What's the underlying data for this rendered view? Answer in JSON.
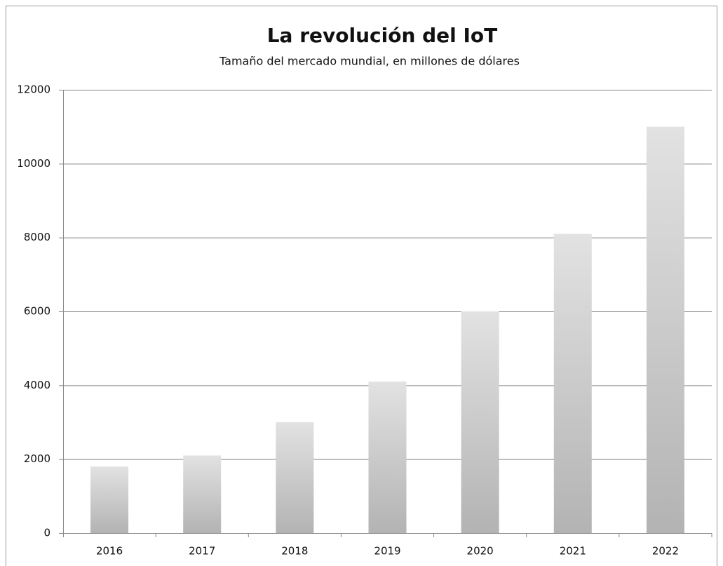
{
  "chart_data": {
    "type": "bar",
    "title": "La revolución del IoT",
    "subtitle": "Tamaño del mercado mundial, en millones de dólares",
    "categories": [
      "2016",
      "2017",
      "2018",
      "2019",
      "2020",
      "2021",
      "2022"
    ],
    "values": [
      1800,
      2100,
      3000,
      4100,
      6000,
      8100,
      11000
    ],
    "color_top": "#e2e2e2",
    "color_bottom": "#b3b3b3",
    "ylim": [
      0,
      12000
    ],
    "yticks": [
      0,
      2000,
      4000,
      6000,
      8000,
      10000,
      12000
    ],
    "grid": true
  }
}
